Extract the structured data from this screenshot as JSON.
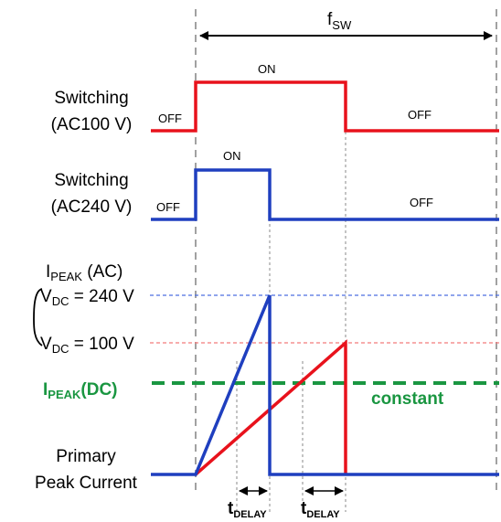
{
  "colors": {
    "red": "#e8121c",
    "blue": "#1f3fbf",
    "green": "#1a9641",
    "guide": "#8a8a8a",
    "blue_dash": "#4d6fe0",
    "red_dash": "#f27a7a"
  },
  "period_label": {
    "main": "f",
    "sub": "SW"
  },
  "row1": {
    "label_line1": "Switching",
    "label_line2": "(AC100 V)",
    "off_left": "OFF",
    "on": "ON",
    "off_right": "OFF"
  },
  "row2": {
    "label_line1": "Switching",
    "label_line2": "(AC240 V)",
    "off_left": "OFF",
    "on": "ON",
    "off_right": "OFF"
  },
  "ipeak_ac": {
    "main": "I",
    "sub": "PEAK",
    "suffix": " (AC)"
  },
  "vdc_high": {
    "main": "V",
    "sub": "DC",
    "value": " = 240 V"
  },
  "vdc_low": {
    "main": "V",
    "sub": "DC",
    "value": " = 100 V"
  },
  "ipeak_dc": {
    "main": "I",
    "sub": "PEAK",
    "suffix": "(DC)",
    "note": "constant"
  },
  "primary": {
    "line1": "Primary",
    "line2": "Peak Current"
  },
  "delay_label": {
    "main": "t",
    "sub": "DELAY"
  }
}
